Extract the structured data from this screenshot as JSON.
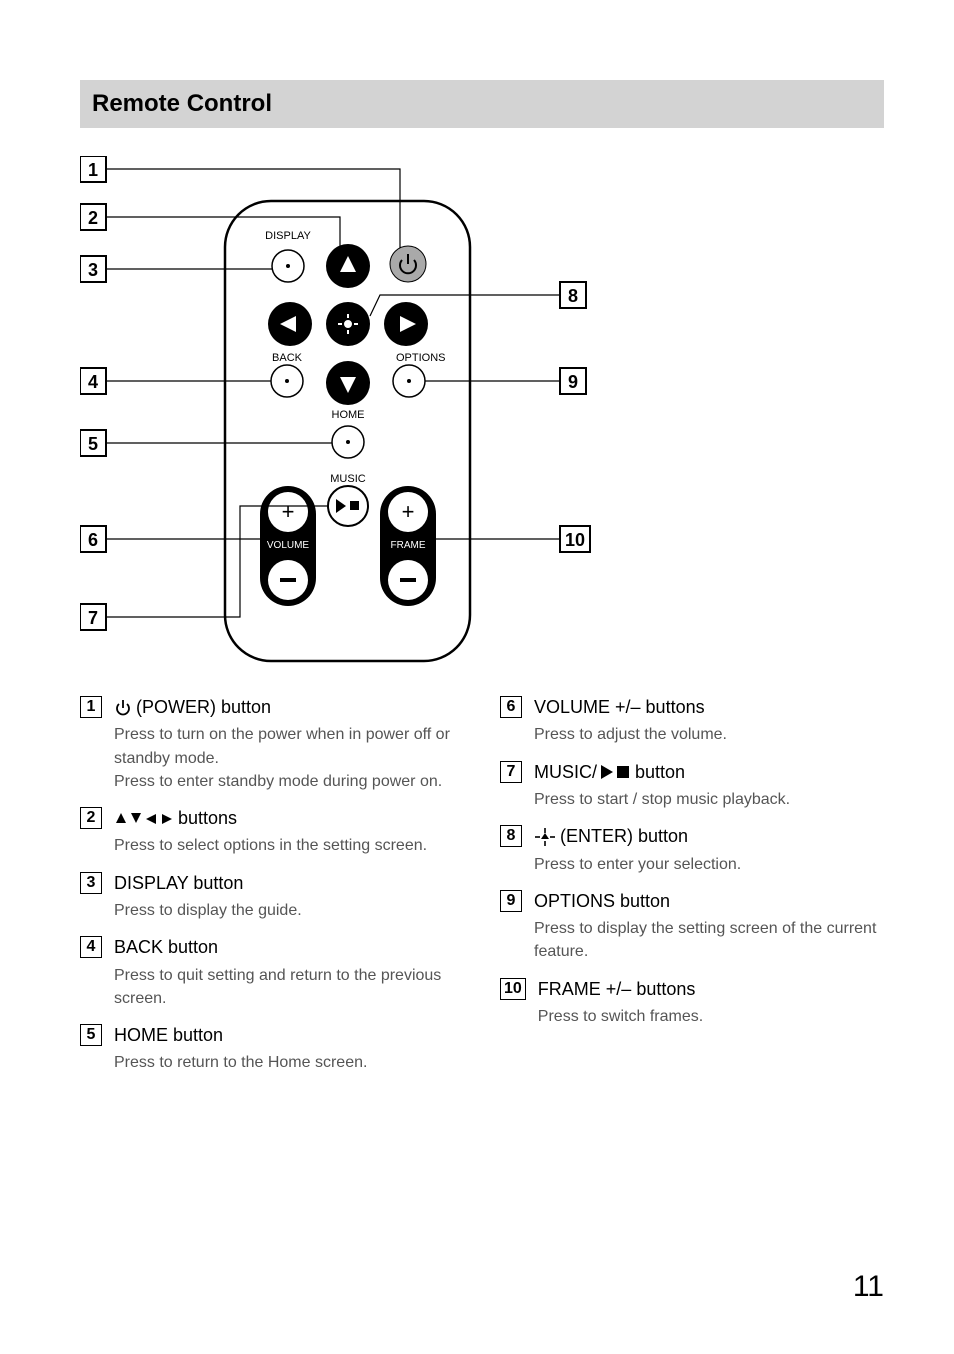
{
  "section_title": "Remote Control",
  "page_number": "11",
  "diagram": {
    "remote_labels": {
      "display": "DISPLAY",
      "back": "BACK",
      "options": "OPTIONS",
      "home": "HOME",
      "music": "MUSIC",
      "volume": "VOLUME",
      "frame": "FRAME"
    },
    "callout_boxes_left": [
      "1",
      "2",
      "3",
      "4",
      "5",
      "6",
      "7"
    ],
    "callout_boxes_right": [
      "8",
      "9",
      "10"
    ],
    "colors": {
      "remote_stroke": "#000000",
      "btn_fill_black": "#000000",
      "btn_fill_white": "#ffffff",
      "btn_gray": "#a9a9a9",
      "text": "#000000",
      "leader": "#000000"
    }
  },
  "legend_left": [
    {
      "num": "1",
      "title_pre_icon": "power",
      "title": "(POWER) button",
      "desc": "Press to turn on the power when in power off or standby mode.\nPress to enter standby mode during power on."
    },
    {
      "num": "2",
      "title_pre_icon": "arrows4",
      "title": "buttons",
      "desc": "Press to select options in the setting screen."
    },
    {
      "num": "3",
      "title": "DISPLAY button",
      "desc": "Press to display the guide."
    },
    {
      "num": "4",
      "title": "BACK button",
      "desc": "Press to quit setting and return to the previous screen."
    },
    {
      "num": "5",
      "title": "HOME button",
      "desc": "Press to return to the Home screen."
    }
  ],
  "legend_right": [
    {
      "num": "6",
      "title": "VOLUME +/– buttons",
      "desc": "Press to adjust the volume."
    },
    {
      "num": "7",
      "title_pre_text": "MUSIC/",
      "title_pre_icon": "playstop",
      "title": "button",
      "desc": "Press to start / stop music playback."
    },
    {
      "num": "8",
      "title_pre_icon": "enter",
      "title": "(ENTER) button",
      "desc": "Press to enter your selection."
    },
    {
      "num": "9",
      "title": "OPTIONS button",
      "desc": "Press to display the setting screen of the current feature."
    },
    {
      "num": "10",
      "title": "FRAME +/– buttons",
      "desc": "Press to switch frames."
    }
  ]
}
